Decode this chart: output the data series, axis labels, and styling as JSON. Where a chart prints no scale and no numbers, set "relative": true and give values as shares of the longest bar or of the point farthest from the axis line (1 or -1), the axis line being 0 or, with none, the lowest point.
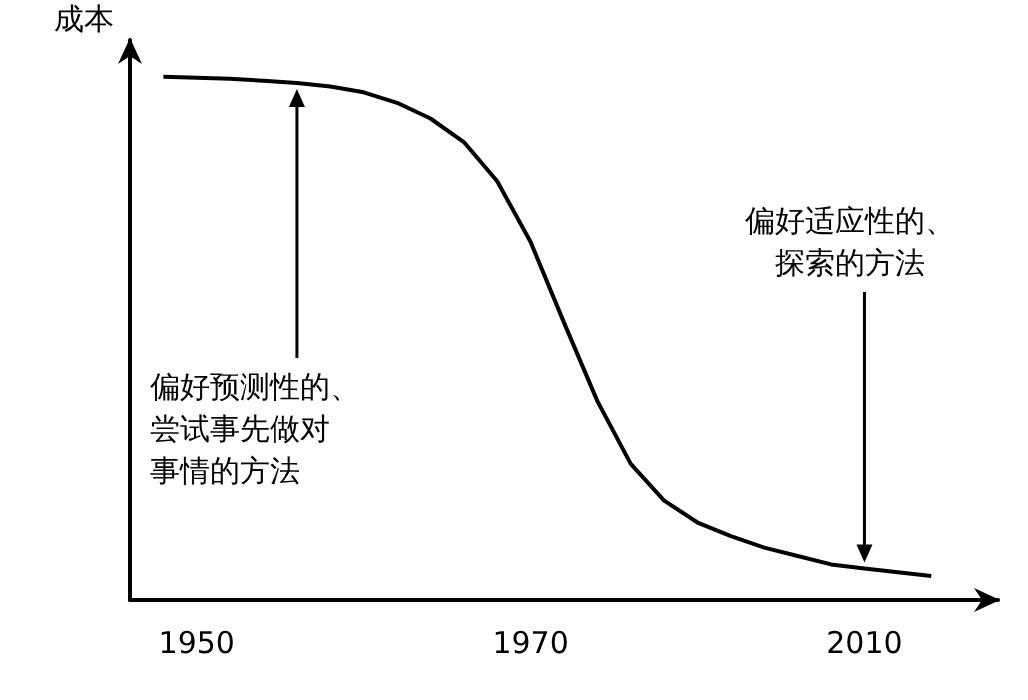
{
  "chart_data": {
    "type": "line",
    "ylabel": "成本",
    "relative": true,
    "color": "#000000",
    "categories": [
      null,
      null,
      "1950",
      null,
      null,
      null,
      null,
      null,
      null,
      null,
      null,
      null,
      "1970",
      null,
      null,
      null,
      null,
      null,
      null,
      null,
      null,
      null,
      "2010",
      null,
      null,
      null,
      null
    ],
    "values": [
      null,
      1.0,
      0.998,
      0.996,
      0.992,
      0.988,
      0.981,
      0.97,
      0.95,
      0.92,
      0.875,
      0.8,
      0.684,
      0.53,
      0.38,
      0.26,
      0.19,
      0.148,
      0.122,
      0.1,
      0.084,
      0.068,
      0.06,
      0.053,
      0.046,
      null,
      null
    ],
    "annotations": [
      "偏好预测性的、尝试事先做对事情的方法",
      "偏好适应性的、探索的方法"
    ],
    "tick_labels": "x",
    "grid": false,
    "marker": "none",
    "line_style": "solid"
  }
}
